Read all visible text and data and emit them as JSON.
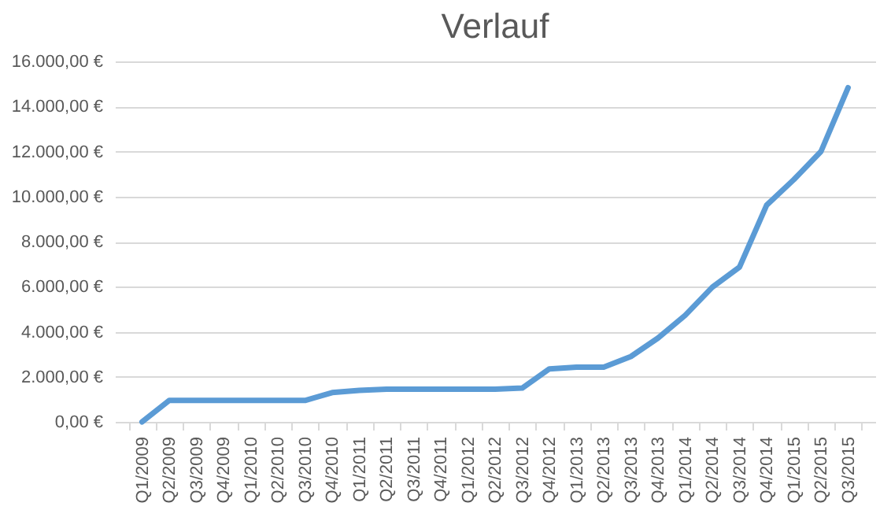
{
  "chart_data": {
    "type": "line",
    "title": "Verlauf",
    "categories": [
      "Q1/2009",
      "Q2/2009",
      "Q3/2009",
      "Q4/2009",
      "Q1/2010",
      "Q2/2010",
      "Q3/2010",
      "Q4/2010",
      "Q1/2011",
      "Q2/2011",
      "Q3/2011",
      "Q4/2011",
      "Q1/2012",
      "Q2/2012",
      "Q3/2012",
      "Q4/2012",
      "Q1/2013",
      "Q2/2013",
      "Q3/2013",
      "Q4/2013",
      "Q1/2014",
      "Q2/2014",
      "Q3/2014",
      "Q4/2014",
      "Q1/2015",
      "Q2/2015",
      "Q3/2015"
    ],
    "series": [
      {
        "color": "#5b9bd5",
        "values": [
          0,
          950,
          950,
          950,
          950,
          950,
          950,
          1300,
          1400,
          1450,
          1450,
          1450,
          1450,
          1450,
          1500,
          2350,
          2430,
          2430,
          2900,
          3720,
          4730,
          5980,
          6870,
          9620,
          10750,
          12000,
          14830
        ]
      }
    ],
    "ylim": [
      0,
      16000
    ],
    "yticks": [
      {
        "value": 0,
        "label": "0,00 €"
      },
      {
        "value": 2000,
        "label": "2.000,00 €"
      },
      {
        "value": 4000,
        "label": "4.000,00 €"
      },
      {
        "value": 6000,
        "label": "6.000,00 €"
      },
      {
        "value": 8000,
        "label": "8.000,00 €"
      },
      {
        "value": 10000,
        "label": "10.000,00 €"
      },
      {
        "value": 12000,
        "label": "12.000,00 €"
      },
      {
        "value": 14000,
        "label": "14.000,00 €"
      },
      {
        "value": 16000,
        "label": "16.000,00 €"
      }
    ],
    "grid": "y",
    "legend": false,
    "marker": "none",
    "line_style": "solid"
  }
}
